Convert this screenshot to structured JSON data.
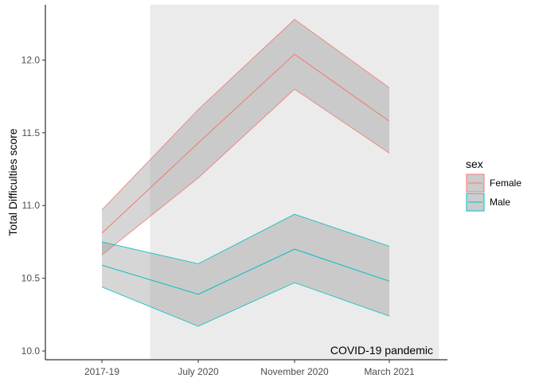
{
  "chart_data": {
    "type": "line",
    "x": [
      "2017-19",
      "July 2020",
      "November 2020",
      "March 2021"
    ],
    "ylabel": "Total Difficulties score",
    "xlabel": "",
    "ylim": [
      9.94,
      12.38
    ],
    "yticks": [
      10.0,
      10.5,
      11.0,
      11.5,
      12.0
    ],
    "ytick_labels": [
      "10.0",
      "10.5",
      "11.0",
      "11.5",
      "12.0"
    ],
    "grid": false,
    "legend": {
      "title": "sex",
      "placement": "right"
    },
    "series": [
      {
        "name": "Female",
        "color": "#F8766D",
        "values": [
          10.81,
          11.43,
          12.04,
          11.58
        ],
        "lower": [
          10.66,
          11.19,
          11.8,
          11.36
        ],
        "upper": [
          10.97,
          11.66,
          12.28,
          11.81
        ]
      },
      {
        "name": "Male",
        "color": "#00BFC4",
        "values": [
          10.59,
          10.39,
          10.7,
          10.48
        ],
        "lower": [
          10.44,
          10.17,
          10.47,
          10.24
        ],
        "upper": [
          10.75,
          10.6,
          10.94,
          10.72
        ]
      }
    ],
    "ribbon_color": "#999999",
    "shaded_region": {
      "label": "COVID-19 pandemic",
      "x_start": 1.5,
      "x_end": 4.5,
      "color": "#EBEBEB"
    }
  }
}
